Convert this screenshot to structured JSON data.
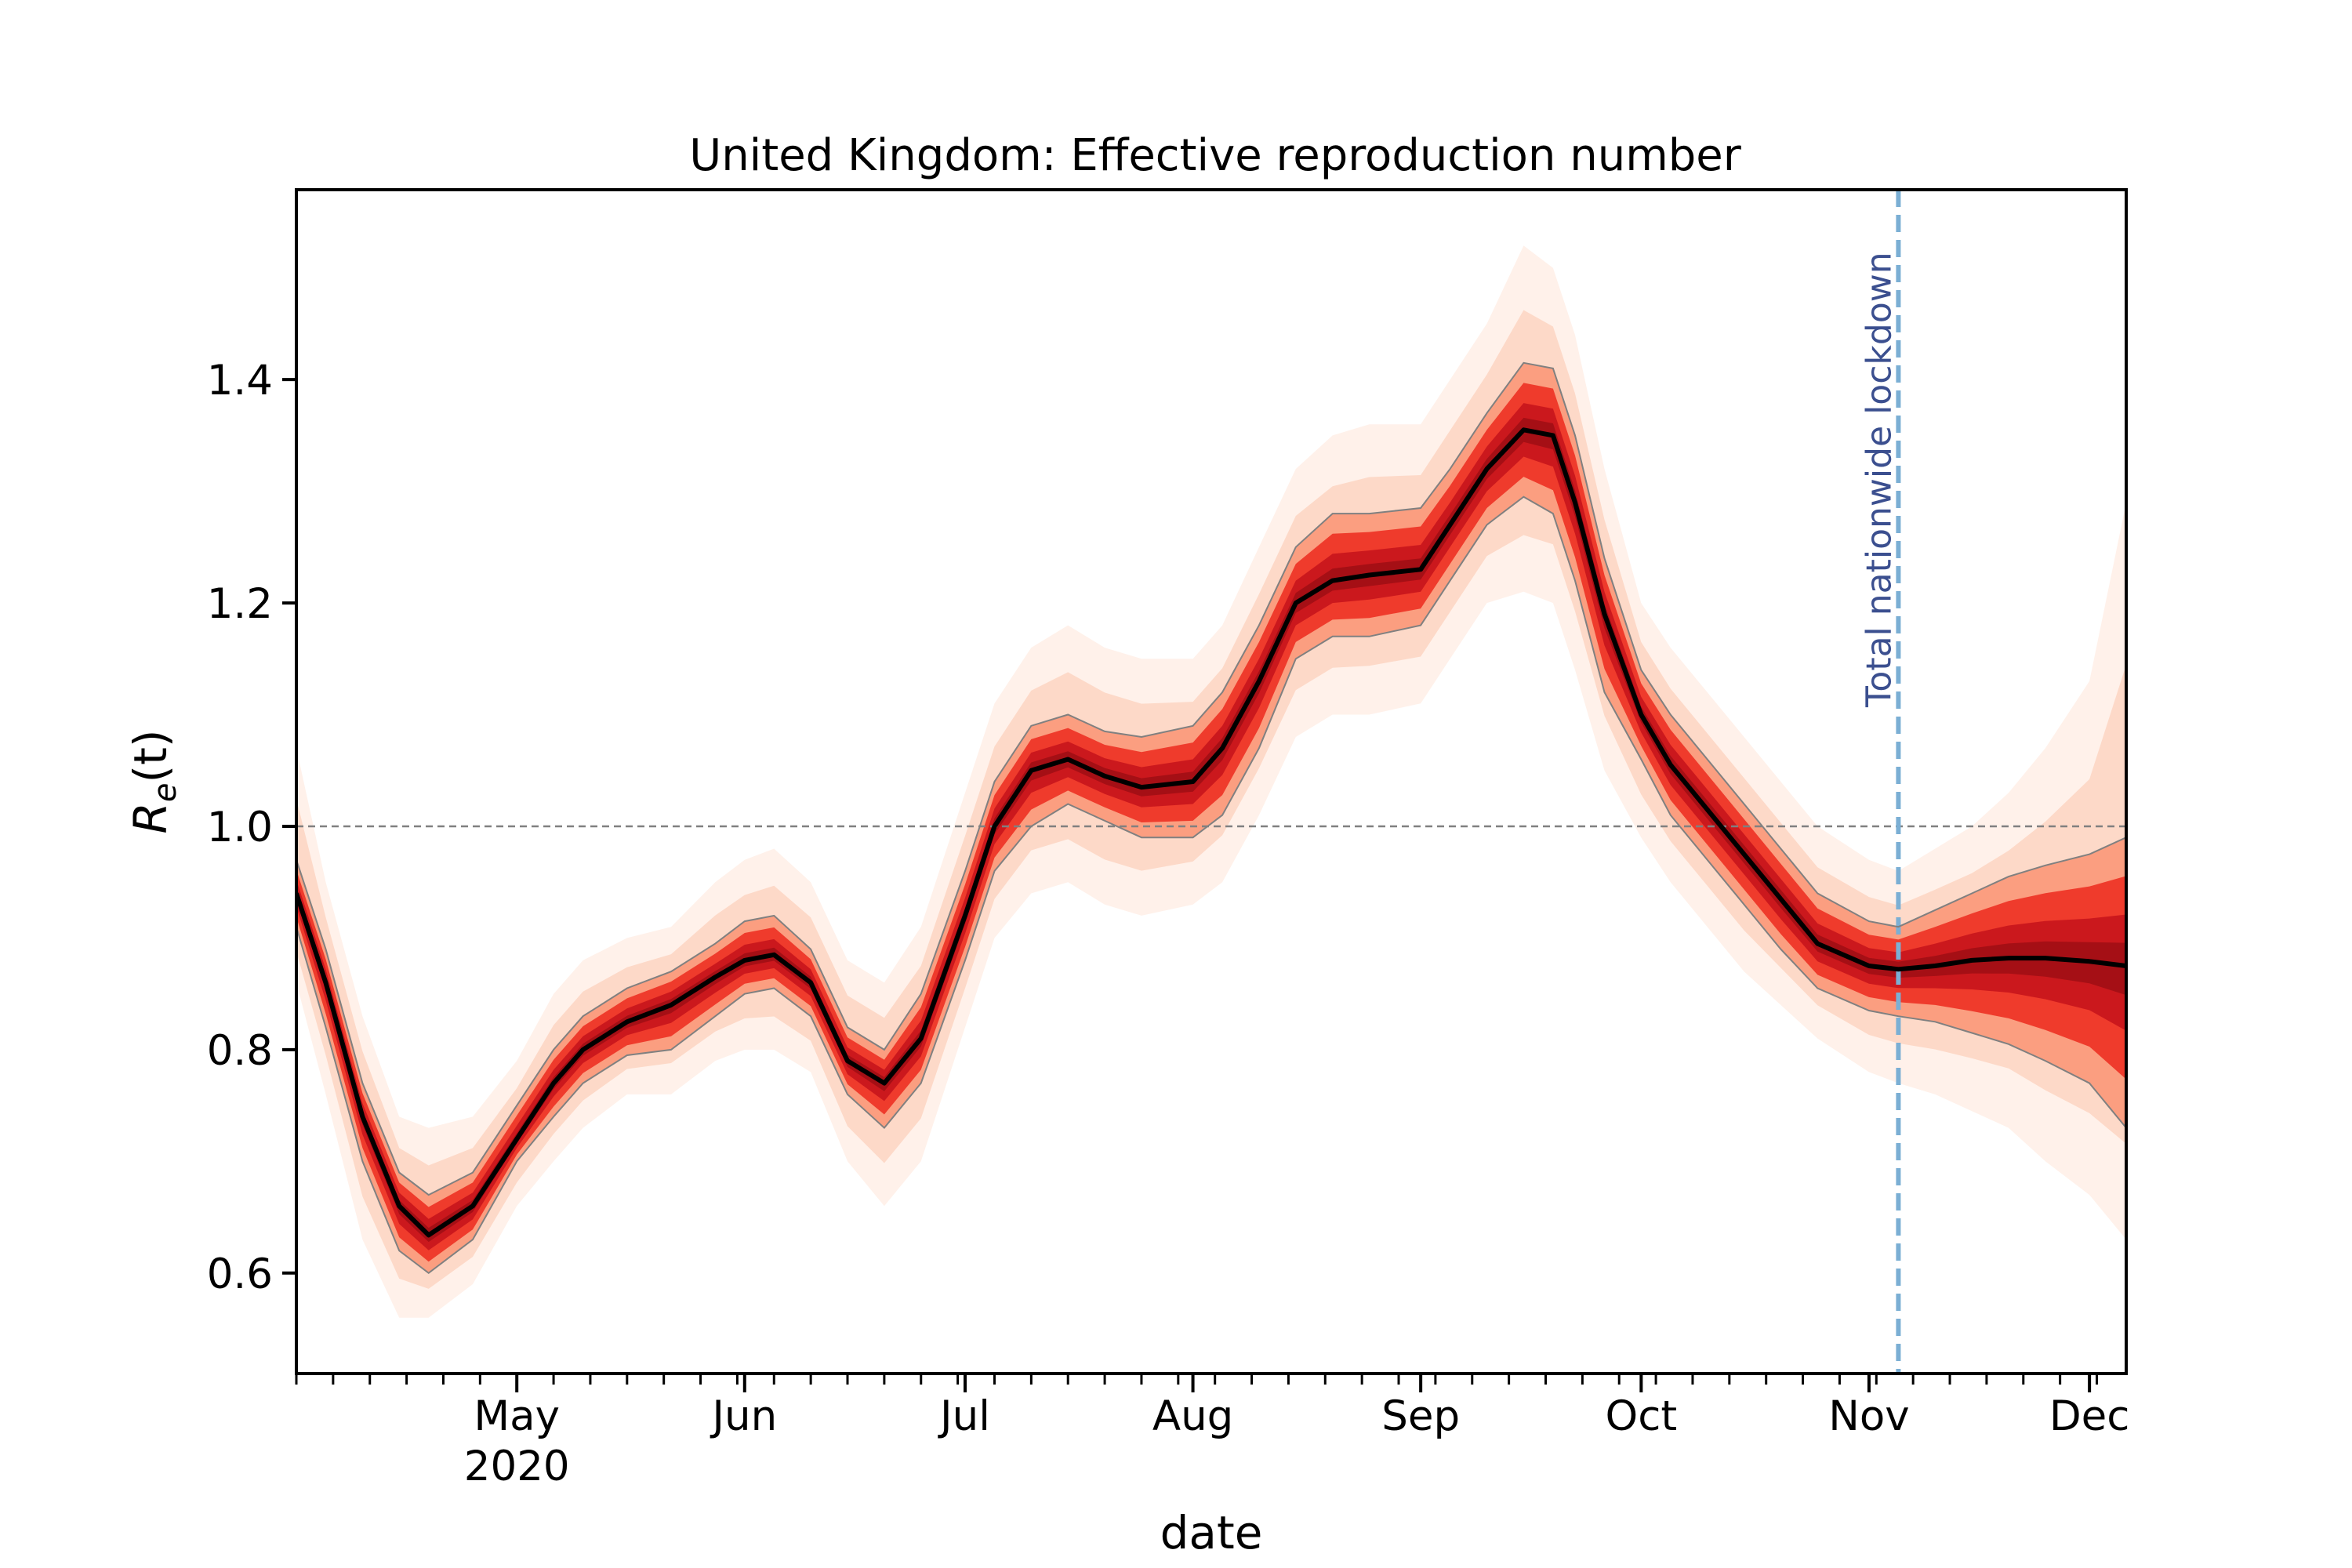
{
  "chart_data": {
    "type": "line",
    "title": "United Kingdom: Effective reproduction number",
    "xlabel": "date",
    "ylabel": "R_e(t)",
    "ylabel_parts": {
      "base": "R",
      "sub": "e",
      "arg": "(t)"
    },
    "xlim": [
      "2020-04-01",
      "2020-12-06"
    ],
    "ylim": [
      0.51,
      1.57
    ],
    "yticks": [
      0.6,
      0.8,
      1.0,
      1.2,
      1.4
    ],
    "ytick_labels": [
      "0.6",
      "0.8",
      "1.0",
      "1.2",
      "1.4"
    ],
    "xticks": [
      {
        "date": "2020-05-01",
        "label": "May",
        "sublabel": "2020"
      },
      {
        "date": "2020-06-01",
        "label": "Jun",
        "sublabel": ""
      },
      {
        "date": "2020-07-01",
        "label": "Jul",
        "sublabel": ""
      },
      {
        "date": "2020-08-01",
        "label": "Aug",
        "sublabel": ""
      },
      {
        "date": "2020-09-01",
        "label": "Sep",
        "sublabel": ""
      },
      {
        "date": "2020-10-01",
        "label": "Oct",
        "sublabel": ""
      },
      {
        "date": "2020-11-01",
        "label": "Nov",
        "sublabel": ""
      },
      {
        "date": "2020-12-01",
        "label": "Dec",
        "sublabel": ""
      }
    ],
    "reference_line": {
      "y": 1.0,
      "color": "#808080",
      "style": "dashed"
    },
    "event": {
      "date": "2020-11-05",
      "label": "Total nationwide lockdown",
      "color": "#7bafd4"
    },
    "colors": {
      "median": "#000000",
      "band_inner": "#a50f15",
      "band_mid": "#ef3b2c",
      "band_outer": "#fcbba1",
      "interval_edge": "#808080"
    },
    "series": {
      "dates": [
        "2020-04-01",
        "2020-04-05",
        "2020-04-10",
        "2020-04-15",
        "2020-04-19",
        "2020-04-25",
        "2020-05-01",
        "2020-05-06",
        "2020-05-10",
        "2020-05-16",
        "2020-05-22",
        "2020-05-28",
        "2020-06-01",
        "2020-06-05",
        "2020-06-10",
        "2020-06-15",
        "2020-06-20",
        "2020-06-25",
        "2020-07-01",
        "2020-07-05",
        "2020-07-10",
        "2020-07-15",
        "2020-07-20",
        "2020-07-25",
        "2020-08-01",
        "2020-08-05",
        "2020-08-10",
        "2020-08-15",
        "2020-08-20",
        "2020-08-25",
        "2020-09-01",
        "2020-09-05",
        "2020-09-10",
        "2020-09-15",
        "2020-09-19",
        "2020-09-22",
        "2020-09-26",
        "2020-10-01",
        "2020-10-05",
        "2020-10-10",
        "2020-10-15",
        "2020-10-20",
        "2020-10-25",
        "2020-11-01",
        "2020-11-05",
        "2020-11-10",
        "2020-11-15",
        "2020-11-20",
        "2020-11-25",
        "2020-12-01",
        "2020-12-06"
      ],
      "median": [
        0.94,
        0.86,
        0.74,
        0.66,
        0.634,
        0.66,
        0.72,
        0.77,
        0.8,
        0.825,
        0.84,
        0.865,
        0.88,
        0.885,
        0.86,
        0.79,
        0.77,
        0.81,
        0.92,
        1.0,
        1.05,
        1.06,
        1.045,
        1.035,
        1.04,
        1.07,
        1.13,
        1.2,
        1.22,
        1.225,
        1.23,
        1.27,
        1.32,
        1.355,
        1.35,
        1.29,
        1.19,
        1.1,
        1.055,
        1.015,
        0.975,
        0.935,
        0.895,
        0.875,
        0.872,
        0.875,
        0.88,
        0.882,
        0.882,
        0.879,
        0.875
      ],
      "ci_lower": [
        0.91,
        0.82,
        0.7,
        0.62,
        0.6,
        0.63,
        0.7,
        0.74,
        0.77,
        0.795,
        0.8,
        0.83,
        0.85,
        0.855,
        0.83,
        0.76,
        0.73,
        0.77,
        0.88,
        0.96,
        1.0,
        1.02,
        1.005,
        0.99,
        0.99,
        1.01,
        1.07,
        1.15,
        1.17,
        1.17,
        1.18,
        1.22,
        1.27,
        1.295,
        1.28,
        1.22,
        1.12,
        1.06,
        1.01,
        0.97,
        0.93,
        0.89,
        0.855,
        0.835,
        0.83,
        0.825,
        0.815,
        0.805,
        0.79,
        0.77,
        0.73
      ],
      "ci_upper": [
        0.97,
        0.89,
        0.77,
        0.69,
        0.67,
        0.69,
        0.75,
        0.8,
        0.83,
        0.855,
        0.87,
        0.895,
        0.915,
        0.92,
        0.89,
        0.82,
        0.8,
        0.85,
        0.96,
        1.04,
        1.09,
        1.1,
        1.085,
        1.08,
        1.09,
        1.12,
        1.18,
        1.25,
        1.28,
        1.28,
        1.285,
        1.32,
        1.37,
        1.415,
        1.41,
        1.35,
        1.24,
        1.14,
        1.1,
        1.06,
        1.02,
        0.98,
        0.94,
        0.915,
        0.91,
        0.925,
        0.94,
        0.955,
        0.965,
        0.975,
        0.99
      ],
      "outer_lower": [
        0.86,
        0.76,
        0.63,
        0.56,
        0.56,
        0.59,
        0.66,
        0.7,
        0.73,
        0.76,
        0.76,
        0.79,
        0.8,
        0.8,
        0.78,
        0.7,
        0.66,
        0.7,
        0.82,
        0.9,
        0.94,
        0.95,
        0.93,
        0.92,
        0.93,
        0.95,
        1.01,
        1.08,
        1.1,
        1.1,
        1.11,
        1.15,
        1.2,
        1.21,
        1.2,
        1.14,
        1.05,
        0.99,
        0.95,
        0.91,
        0.87,
        0.84,
        0.81,
        0.78,
        0.77,
        0.76,
        0.745,
        0.73,
        0.7,
        0.67,
        0.63
      ],
      "outer_upper": [
        1.07,
        0.95,
        0.83,
        0.74,
        0.73,
        0.74,
        0.79,
        0.85,
        0.88,
        0.9,
        0.91,
        0.95,
        0.97,
        0.98,
        0.95,
        0.88,
        0.86,
        0.91,
        1.03,
        1.11,
        1.16,
        1.18,
        1.16,
        1.15,
        1.15,
        1.18,
        1.25,
        1.32,
        1.35,
        1.36,
        1.36,
        1.4,
        1.45,
        1.52,
        1.5,
        1.44,
        1.32,
        1.2,
        1.16,
        1.12,
        1.08,
        1.04,
        1.0,
        0.97,
        0.96,
        0.98,
        1.0,
        1.03,
        1.07,
        1.13,
        1.29
      ]
    }
  }
}
